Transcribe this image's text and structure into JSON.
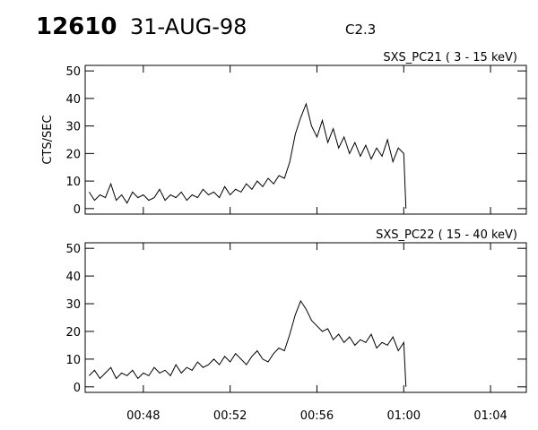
{
  "header": {
    "id": "12610",
    "date": "31-AUG-98",
    "class": "C2.3"
  },
  "chart_data": [
    {
      "type": "line",
      "title": "SXS_PC21  (  3 - 15 keV)",
      "ylabel": "CTS/SEC",
      "color": "#000000",
      "x": [
        45.5,
        45.75,
        46,
        46.25,
        46.5,
        46.75,
        47,
        47.25,
        47.5,
        47.75,
        48,
        48.25,
        48.5,
        48.75,
        49,
        49.25,
        49.5,
        49.75,
        50,
        50.25,
        50.5,
        50.75,
        51,
        51.25,
        51.5,
        51.75,
        52,
        52.25,
        52.5,
        52.75,
        53,
        53.25,
        53.5,
        53.75,
        54,
        54.25,
        54.5,
        54.75,
        55,
        55.25,
        55.5,
        55.75,
        56,
        56.25,
        56.5,
        56.75,
        57,
        57.25,
        57.5,
        57.75,
        58,
        58.25,
        58.5,
        58.75,
        59,
        59.25,
        59.5,
        59.75,
        60,
        60.1
      ],
      "values": [
        6,
        3,
        5,
        4,
        9,
        3,
        5,
        2,
        6,
        4,
        5,
        3,
        4,
        7,
        3,
        5,
        4,
        6,
        3,
        5,
        4,
        7,
        5,
        6,
        4,
        8,
        5,
        7,
        6,
        9,
        7,
        10,
        8,
        11,
        9,
        12,
        11,
        17,
        27,
        33,
        38,
        30,
        26,
        32,
        24,
        29,
        22,
        26,
        20,
        24,
        19,
        23,
        18,
        22,
        19,
        25,
        17,
        22,
        20,
        0
      ],
      "xlim": [
        45.32,
        65.65
      ],
      "ylim": [
        -2,
        52
      ],
      "yticks": [
        0,
        10,
        20,
        30,
        40,
        50
      ]
    },
    {
      "type": "line",
      "title": "SXS_PC22  ( 15 - 40 keV)",
      "color": "#000000",
      "x": [
        45.5,
        45.75,
        46,
        46.25,
        46.5,
        46.75,
        47,
        47.25,
        47.5,
        47.75,
        48,
        48.25,
        48.5,
        48.75,
        49,
        49.25,
        49.5,
        49.75,
        50,
        50.25,
        50.5,
        50.75,
        51,
        51.25,
        51.5,
        51.75,
        52,
        52.25,
        52.5,
        52.75,
        53,
        53.25,
        53.5,
        53.75,
        54,
        54.25,
        54.5,
        54.75,
        55,
        55.25,
        55.5,
        55.75,
        56,
        56.25,
        56.5,
        56.75,
        57,
        57.25,
        57.5,
        57.75,
        58,
        58.25,
        58.5,
        58.75,
        59,
        59.25,
        59.5,
        59.75,
        60,
        60.1
      ],
      "values": [
        4,
        6,
        3,
        5,
        7,
        3,
        5,
        4,
        6,
        3,
        5,
        4,
        7,
        5,
        6,
        4,
        8,
        5,
        7,
        6,
        9,
        7,
        8,
        10,
        8,
        11,
        9,
        12,
        10,
        8,
        11,
        13,
        10,
        9,
        12,
        14,
        13,
        19,
        26,
        31,
        28,
        24,
        22,
        20,
        21,
        17,
        19,
        16,
        18,
        15,
        17,
        16,
        19,
        14,
        16,
        15,
        18,
        13,
        16,
        0
      ],
      "xlim": [
        45.32,
        65.65
      ],
      "ylim": [
        -2,
        52
      ],
      "yticks": [
        0,
        10,
        20,
        30,
        40,
        50
      ],
      "xticks": [
        {
          "value": 48,
          "label": "00:48"
        },
        {
          "value": 52,
          "label": "00:52"
        },
        {
          "value": 56,
          "label": "00:56"
        },
        {
          "value": 60,
          "label": "01:00"
        },
        {
          "value": 64,
          "label": "01:04"
        }
      ]
    }
  ]
}
